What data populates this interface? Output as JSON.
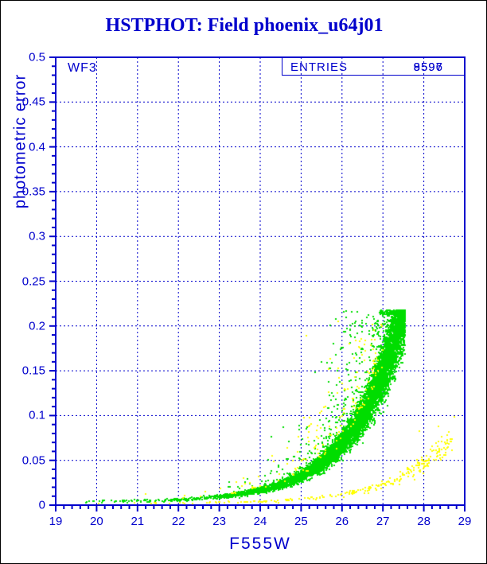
{
  "title": "HSTPHOT: Field phoenix_u64j01",
  "chip_label": "WF3",
  "stats_box": {
    "label": "ENTRIES",
    "entries_green": "9596",
    "entries_yellow": "8597"
  },
  "axes": {
    "xlabel": "F555W",
    "ylabel": "photometric error",
    "xlim": [
      19,
      29
    ],
    "ylim": [
      0,
      0.5
    ],
    "x_ticks": [
      "19",
      "20",
      "21",
      "22",
      "23",
      "24",
      "25",
      "26",
      "27",
      "28",
      "29"
    ],
    "y_ticks": [
      "0",
      "0.05",
      "0.1",
      "0.15",
      "0.2",
      "0.25",
      "0.3",
      "0.35",
      "0.4",
      "0.45",
      "0.5"
    ],
    "x_minor_step": 0.2,
    "y_minor_step": 0.01,
    "grid": "dashed at every major tick"
  },
  "colors": {
    "plot_blue": "#0000cc",
    "green_points": "#00dd00",
    "yellow_points": "#ffff00",
    "background": "#ffffff",
    "outer_border": "#000000"
  },
  "chart_data": {
    "type": "scatter",
    "title": "HSTPHOT: Field phoenix_u64j01",
    "xlabel": "F555W",
    "ylabel": "photometric error",
    "xlim": [
      19,
      29
    ],
    "ylim": [
      0,
      0.5
    ],
    "legend_position": "none",
    "grid": true,
    "error_cap": 0.217,
    "series": [
      {
        "name": "green-points",
        "color": "#00dd00",
        "entries": 9596,
        "locus_x": [
          20.0,
          21.0,
          22.0,
          23.0,
          24.0,
          24.5,
          25.0,
          25.5,
          26.0,
          26.5,
          27.0,
          27.25,
          27.5
        ],
        "locus_err": [
          0.003,
          0.003,
          0.004,
          0.006,
          0.013,
          0.02,
          0.03,
          0.046,
          0.07,
          0.105,
          0.15,
          0.185,
          0.217
        ],
        "note": "dense locus rising exponentially, flat pile-up cap at err 0.212-0.218 for F555W 27.0-27.55, diffuse cloud of outliers above locus for F555W 23.5-27.3"
      },
      {
        "name": "yellow-points",
        "color": "#ffff00",
        "entries": 8597,
        "locus_x": [
          20.0,
          22.0,
          24.0,
          25.0,
          26.0,
          26.5,
          27.0,
          27.5,
          28.0,
          28.6
        ],
        "locus_err": [
          0.002,
          0.002,
          0.003,
          0.005,
          0.011,
          0.016,
          0.026,
          0.042,
          0.06,
          0.075
        ],
        "note": "sparse shallow locus hugging the bottom, plus scattered points mixed into the green cloud"
      }
    ],
    "yellow_outliers": [
      [
        21.2,
        0.012
      ],
      [
        23.6,
        0.03
      ],
      [
        24.3,
        0.055
      ],
      [
        25.13,
        0.189
      ],
      [
        25.9,
        0.205
      ],
      [
        27.6,
        0.042
      ],
      [
        27.9,
        0.083
      ],
      [
        28.36,
        0.088
      ],
      [
        28.75,
        0.099
      ]
    ],
    "generator": {
      "seed": 42,
      "green": {
        "n": 9000,
        "mag_max": 27.55,
        "mag_min": 19.6,
        "mag_slope": 0.62,
        "bright_keep": 0.35,
        "floor": 0.0035,
        "amp": 0.2,
        "k": 0.8,
        "x0": 27.4,
        "cap": 0.217,
        "rel_scatter": 0.2,
        "cloud_frac": 0.07
      },
      "yellow": {
        "n": 420,
        "curve_frac": 0.62,
        "mag_max": 28.7,
        "mag_slope": 0.45,
        "floor": 0.0018,
        "amp": 0.042,
        "k": 0.75,
        "x0": 27.9
      }
    }
  }
}
